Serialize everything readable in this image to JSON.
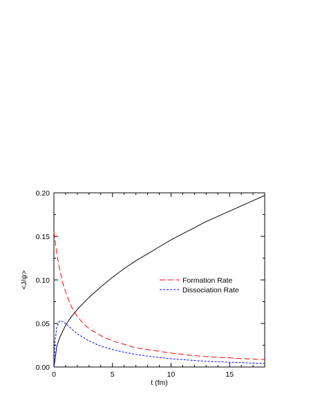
{
  "chart_data": {
    "type": "line",
    "title": "",
    "xlabel": "t (fm)",
    "ylabel": "<J/ψ>",
    "xlim": [
      0,
      18
    ],
    "ylim": [
      0,
      0.2
    ],
    "xticks": [
      0,
      5,
      10,
      15
    ],
    "xtick_labels": [
      "0",
      "5",
      "10",
      "15"
    ],
    "yticks": [
      0,
      0.05,
      0.1,
      0.15,
      0.2
    ],
    "ytick_labels": [
      "0.00",
      "0.05",
      "0.10",
      "0.15",
      "0.20"
    ],
    "grid": false,
    "legend_position": "center-right",
    "series": [
      {
        "name": "",
        "style": "solid",
        "color": "#000000",
        "x": [
          0,
          0.25,
          0.5,
          1,
          1.5,
          2,
          3,
          4,
          5,
          6,
          7,
          8,
          9,
          10,
          11,
          12,
          13,
          14,
          15,
          16,
          17,
          18
        ],
        "y": [
          0,
          0.024,
          0.034,
          0.048,
          0.058,
          0.066,
          0.08,
          0.092,
          0.103,
          0.113,
          0.122,
          0.13,
          0.138,
          0.146,
          0.153,
          0.16,
          0.167,
          0.173,
          0.179,
          0.185,
          0.191,
          0.197
        ]
      },
      {
        "name": "Formation Rate",
        "style": "long-dash",
        "color": "#ff0000",
        "x": [
          0,
          0.25,
          0.5,
          0.75,
          1,
          1.5,
          2,
          2.5,
          3,
          4,
          5,
          6,
          7,
          8,
          9,
          10,
          11,
          12,
          13,
          14,
          15,
          16,
          17,
          18
        ],
        "y": [
          0.155,
          0.13,
          0.112,
          0.097,
          0.086,
          0.069,
          0.058,
          0.05,
          0.044,
          0.036,
          0.03,
          0.026,
          0.022,
          0.02,
          0.018,
          0.016,
          0.0145,
          0.013,
          0.012,
          0.011,
          0.0105,
          0.0097,
          0.009,
          0.0085
        ]
      },
      {
        "name": "Dissociation Rate",
        "style": "short-dash",
        "color": "#0000ff",
        "x": [
          0,
          0.1,
          0.25,
          0.5,
          0.75,
          1,
          1.5,
          2,
          3,
          4,
          5,
          6,
          7,
          8,
          9,
          10,
          11,
          12,
          13,
          14,
          15,
          16,
          17,
          18
        ],
        "y": [
          0,
          0.03,
          0.046,
          0.053,
          0.052,
          0.05,
          0.044,
          0.038,
          0.03,
          0.024,
          0.02,
          0.017,
          0.0145,
          0.0125,
          0.011,
          0.0095,
          0.0085,
          0.0075,
          0.0065,
          0.006,
          0.0055,
          0.005,
          0.0045,
          0.004
        ]
      }
    ]
  }
}
